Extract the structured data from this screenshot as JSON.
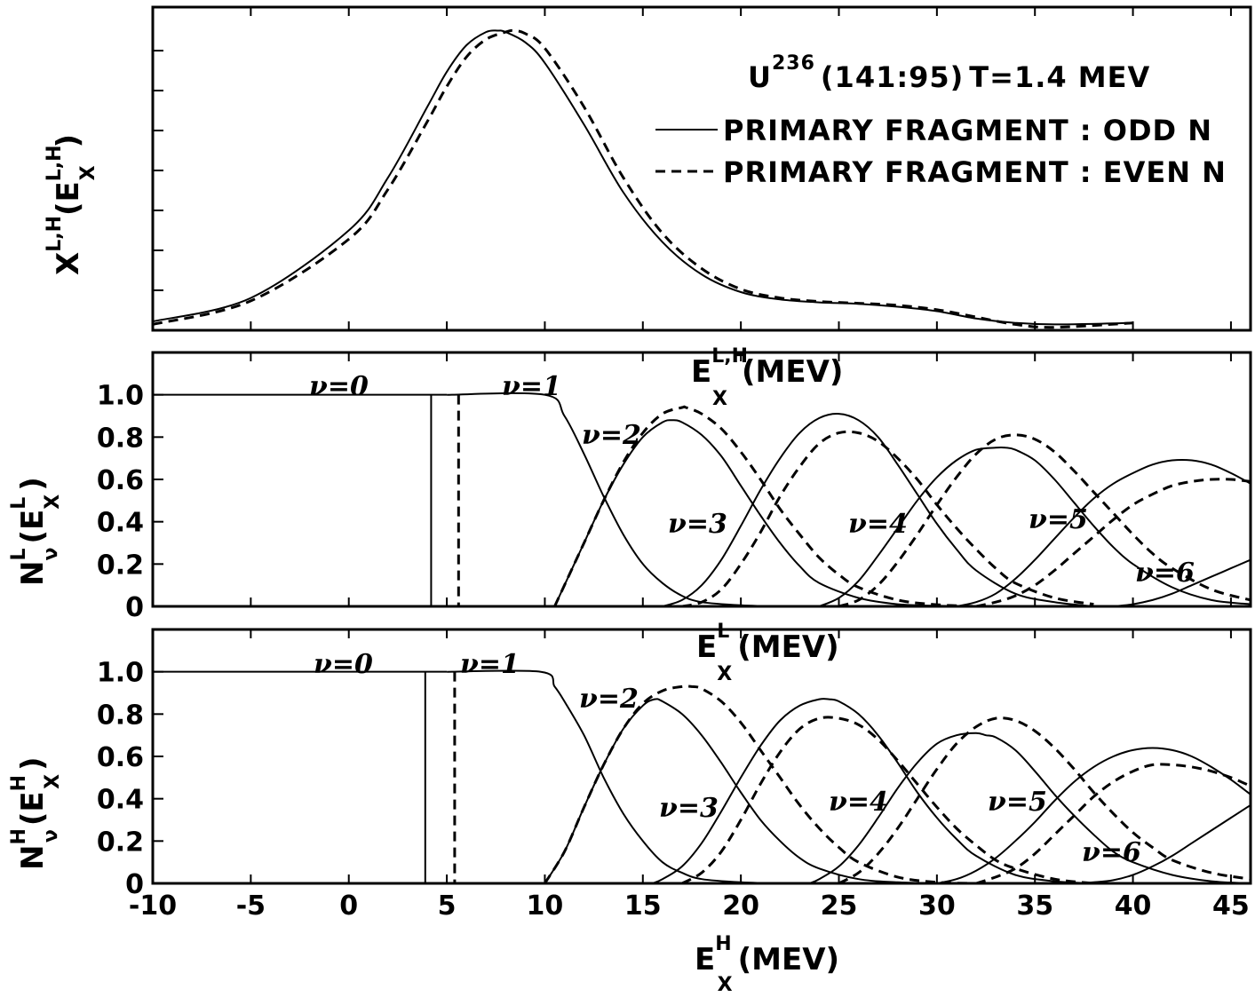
{
  "chart_data": [
    {
      "type": "line",
      "panel": "top",
      "title_parts": {
        "nucleus": "U",
        "mass": "236",
        "ratio": "(141:95)",
        "temperature": "T=1.4 MEV"
      },
      "ylabel": {
        "base": "X",
        "sup": "L,H",
        "arg_open": "(E",
        "arg_sup": "L,H",
        "arg_sub": "X",
        "arg_close": ")"
      },
      "xlabel": {
        "base": "E",
        "sup": "L,H",
        "sub": "X",
        "unit": "(MEV)"
      },
      "xlim": [
        -10,
        46
      ],
      "ylim": [
        0,
        1.0
      ],
      "y_ticks_labeled": false,
      "legend": [
        "PRIMARY FRAGMENT : ODD N",
        "PRIMARY FRAGMENT : EVEN N"
      ],
      "series": [
        {
          "name": "PRIMARY FRAGMENT : ODD N",
          "style": "solid",
          "x": [
            -10,
            -5,
            0,
            2,
            4,
            5,
            6,
            7,
            7.6,
            8,
            9,
            10,
            12,
            14,
            16,
            18,
            20,
            22,
            24,
            26,
            28,
            30,
            32,
            34,
            36,
            40
          ],
          "y": [
            0.01,
            0.09,
            0.32,
            0.5,
            0.74,
            0.86,
            0.95,
            0.995,
            1.0,
            0.995,
            0.96,
            0.89,
            0.68,
            0.45,
            0.28,
            0.17,
            0.11,
            0.085,
            0.075,
            0.07,
            0.06,
            0.045,
            0.02,
            0.005,
            0.0,
            0.005
          ]
        },
        {
          "name": "PRIMARY FRAGMENT : EVEN N",
          "style": "dashed",
          "x": [
            -10,
            -5,
            0,
            2,
            4,
            5,
            6,
            7,
            8,
            8.4,
            9,
            10,
            12,
            14,
            16,
            18,
            20,
            22,
            24,
            26,
            28,
            30,
            32,
            34,
            36,
            40
          ],
          "y": [
            0.0,
            0.08,
            0.29,
            0.46,
            0.69,
            0.81,
            0.91,
            0.97,
            0.995,
            1.0,
            0.99,
            0.94,
            0.74,
            0.5,
            0.31,
            0.19,
            0.12,
            0.09,
            0.078,
            0.072,
            0.065,
            0.05,
            0.025,
            0.0,
            -0.01,
            0.005
          ]
        }
      ]
    },
    {
      "type": "line",
      "panel": "middle",
      "ylabel": {
        "base": "N",
        "sup": "L",
        "sub": "ν",
        "arg_open": "(E",
        "arg_sup": "L",
        "arg_sub": "X",
        "arg_close": ")"
      },
      "xlabel": {
        "base": "E",
        "sup": "L",
        "sub": "X",
        "unit": "(MEV)"
      },
      "xlim": [
        -10,
        46
      ],
      "ylim": [
        0,
        1.2
      ],
      "y_ticks": [
        "0",
        "0.2",
        "0.4",
        "0.6",
        "0.8",
        "1.0"
      ],
      "curve_labels": [
        "ν=0",
        "ν=1",
        "ν=2",
        "ν=3",
        "ν=4",
        "ν=5",
        "ν=6"
      ],
      "thresholds": {
        "odd_N": 4.2,
        "even_N": 5.6
      },
      "series": [
        {
          "name": "ν=1",
          "style": "both",
          "x": [
            5,
            10,
            11,
            12,
            13,
            14,
            15,
            16,
            17,
            18,
            20,
            22,
            24
          ],
          "y": [
            1.0,
            1.0,
            0.9,
            0.72,
            0.52,
            0.34,
            0.2,
            0.11,
            0.05,
            0.02,
            0.005,
            0.0,
            0.0
          ]
        },
        {
          "name": "ν=2",
          "style": "solid",
          "x": [
            10.5,
            11,
            12,
            13,
            14,
            15,
            16,
            16.5,
            17,
            18,
            19,
            20,
            21,
            22,
            23,
            24,
            26,
            28,
            30,
            32
          ],
          "y": [
            0.0,
            0.1,
            0.3,
            0.5,
            0.67,
            0.8,
            0.87,
            0.88,
            0.87,
            0.81,
            0.71,
            0.57,
            0.43,
            0.3,
            0.19,
            0.11,
            0.04,
            0.01,
            0.003,
            0.0
          ]
        },
        {
          "name": "ν=2",
          "style": "dashed",
          "x": [
            10.5,
            11,
            12,
            13,
            14,
            15,
            16,
            17,
            17.2,
            18,
            19,
            20,
            21,
            22,
            23,
            24,
            25,
            26,
            28,
            30,
            32
          ],
          "y": [
            0.0,
            0.1,
            0.3,
            0.5,
            0.68,
            0.82,
            0.91,
            0.94,
            0.94,
            0.91,
            0.84,
            0.73,
            0.6,
            0.46,
            0.34,
            0.23,
            0.15,
            0.09,
            0.03,
            0.008,
            0.0
          ]
        },
        {
          "name": "ν=3",
          "style": "solid",
          "x": [
            16,
            17,
            18,
            19,
            20,
            21,
            22,
            23,
            24,
            25,
            26,
            27,
            28,
            29,
            30,
            31,
            32,
            34,
            36,
            38
          ],
          "y": [
            0.0,
            0.03,
            0.1,
            0.22,
            0.38,
            0.55,
            0.7,
            0.82,
            0.89,
            0.91,
            0.88,
            0.8,
            0.67,
            0.53,
            0.39,
            0.27,
            0.17,
            0.06,
            0.02,
            0.0
          ]
        },
        {
          "name": "ν=3",
          "style": "dashed",
          "x": [
            17,
            18,
            19,
            20,
            21,
            22,
            23,
            24,
            25,
            26,
            27,
            28,
            29,
            30,
            31,
            32,
            33,
            34,
            36,
            38
          ],
          "y": [
            0.0,
            0.02,
            0.08,
            0.2,
            0.35,
            0.52,
            0.66,
            0.77,
            0.82,
            0.82,
            0.78,
            0.7,
            0.6,
            0.48,
            0.37,
            0.27,
            0.18,
            0.11,
            0.04,
            0.01
          ]
        },
        {
          "name": "ν=4",
          "style": "solid",
          "x": [
            24,
            25,
            26,
            27,
            28,
            29,
            30,
            31,
            32,
            33,
            33.5,
            34,
            35,
            36,
            37,
            38,
            39,
            40,
            42,
            44,
            46
          ],
          "y": [
            0.0,
            0.04,
            0.12,
            0.24,
            0.37,
            0.5,
            0.61,
            0.69,
            0.74,
            0.75,
            0.75,
            0.74,
            0.69,
            0.6,
            0.49,
            0.38,
            0.28,
            0.2,
            0.09,
            0.03,
            0.01
          ]
        },
        {
          "name": "ν=4",
          "style": "dashed",
          "x": [
            25,
            26,
            27,
            28,
            29,
            30,
            31,
            32,
            33,
            34,
            35,
            36,
            37,
            38,
            39,
            40,
            41,
            42,
            44,
            46
          ],
          "y": [
            0.0,
            0.03,
            0.1,
            0.21,
            0.34,
            0.48,
            0.61,
            0.72,
            0.79,
            0.81,
            0.79,
            0.73,
            0.64,
            0.54,
            0.44,
            0.34,
            0.25,
            0.18,
            0.08,
            0.03
          ]
        },
        {
          "name": "ν=5",
          "style": "solid",
          "x": [
            31,
            32,
            33,
            34,
            35,
            36,
            37,
            38,
            39,
            40,
            41,
            42,
            43,
            44,
            45,
            46
          ],
          "y": [
            0.0,
            0.02,
            0.06,
            0.13,
            0.22,
            0.32,
            0.42,
            0.51,
            0.58,
            0.63,
            0.67,
            0.69,
            0.69,
            0.67,
            0.63,
            0.58
          ]
        },
        {
          "name": "ν=5",
          "style": "dashed",
          "x": [
            32,
            33,
            34,
            35,
            36,
            37,
            38,
            39,
            40,
            41,
            42,
            43,
            44,
            45,
            46
          ],
          "y": [
            0.0,
            0.02,
            0.05,
            0.1,
            0.17,
            0.25,
            0.33,
            0.41,
            0.48,
            0.53,
            0.57,
            0.59,
            0.6,
            0.6,
            0.59
          ]
        },
        {
          "name": "ν=6",
          "style": "both",
          "x": [
            39,
            40,
            41,
            42,
            43,
            44,
            45,
            46
          ],
          "y": [
            0.0,
            0.01,
            0.03,
            0.06,
            0.1,
            0.14,
            0.18,
            0.22
          ]
        }
      ]
    },
    {
      "type": "line",
      "panel": "bottom",
      "ylabel": {
        "base": "N",
        "sup": "H",
        "sub": "ν",
        "arg_open": "(E",
        "arg_sup": "H",
        "arg_sub": "X",
        "arg_close": ")"
      },
      "xlabel": {
        "base": "E",
        "sup": "H",
        "sub": "X",
        "unit": "(MEV)"
      },
      "xlim": [
        -10,
        46
      ],
      "ylim": [
        0,
        1.2
      ],
      "x_ticks": [
        "-10",
        "-5",
        "0",
        "5",
        "10",
        "15",
        "20",
        "25",
        "30",
        "35",
        "40",
        "45"
      ],
      "y_ticks": [
        "0",
        "0.2",
        "0.4",
        "0.6",
        "0.8",
        "1.0"
      ],
      "curve_labels": [
        "ν=0",
        "ν=1",
        "ν=2",
        "ν=3",
        "ν=4",
        "ν=5",
        "ν=6"
      ],
      "thresholds": {
        "odd_N": 3.9,
        "even_N": 5.4
      },
      "series": [
        {
          "name": "ν=1",
          "style": "both",
          "x": [
            5,
            9.8,
            10.5,
            11,
            12,
            13,
            14,
            15,
            16,
            17,
            18,
            20,
            22,
            24
          ],
          "y": [
            1.0,
            1.0,
            0.93,
            0.86,
            0.7,
            0.5,
            0.33,
            0.2,
            0.1,
            0.05,
            0.02,
            0.005,
            0.0,
            0.0
          ]
        },
        {
          "name": "ν=2",
          "style": "solid",
          "x": [
            10,
            11,
            12,
            13,
            14,
            15,
            15.6,
            16,
            17,
            18,
            19,
            20,
            21,
            22,
            23,
            24,
            26,
            28,
            30,
            32
          ],
          "y": [
            0.0,
            0.15,
            0.36,
            0.56,
            0.73,
            0.84,
            0.87,
            0.86,
            0.8,
            0.7,
            0.57,
            0.43,
            0.3,
            0.2,
            0.12,
            0.07,
            0.02,
            0.005,
            0.0,
            0.0
          ]
        },
        {
          "name": "ν=2",
          "style": "dashed",
          "x": [
            10,
            11,
            12,
            13,
            14,
            15,
            16,
            17,
            17.5,
            18,
            19,
            20,
            21,
            22,
            23,
            24,
            25,
            26,
            28,
            30,
            32
          ],
          "y": [
            0.0,
            0.15,
            0.36,
            0.56,
            0.73,
            0.85,
            0.91,
            0.93,
            0.93,
            0.92,
            0.86,
            0.76,
            0.63,
            0.5,
            0.37,
            0.26,
            0.17,
            0.1,
            0.03,
            0.005,
            0.0
          ]
        },
        {
          "name": "ν=3",
          "style": "solid",
          "x": [
            15.5,
            16,
            17,
            18,
            19,
            20,
            21,
            22,
            23,
            24,
            24.5,
            25,
            26,
            27,
            28,
            29,
            30,
            31,
            32,
            34,
            36,
            38
          ],
          "y": [
            0.0,
            0.02,
            0.08,
            0.19,
            0.34,
            0.5,
            0.65,
            0.77,
            0.84,
            0.87,
            0.87,
            0.86,
            0.8,
            0.7,
            0.57,
            0.43,
            0.31,
            0.21,
            0.13,
            0.04,
            0.01,
            0.0
          ]
        },
        {
          "name": "ν=3",
          "style": "dashed",
          "x": [
            17,
            18,
            19,
            20,
            21,
            22,
            23,
            24,
            25,
            26,
            27,
            28,
            29,
            30,
            31,
            32,
            33,
            34,
            36,
            38
          ],
          "y": [
            0.0,
            0.05,
            0.15,
            0.3,
            0.47,
            0.62,
            0.73,
            0.78,
            0.78,
            0.75,
            0.68,
            0.58,
            0.47,
            0.36,
            0.26,
            0.18,
            0.11,
            0.07,
            0.02,
            0.0
          ]
        },
        {
          "name": "ν=4",
          "style": "solid",
          "x": [
            23.5,
            24,
            25,
            26,
            27,
            28,
            29,
            30,
            31,
            32,
            32.5,
            33,
            34,
            35,
            36,
            37,
            38,
            39,
            40,
            42,
            44,
            46
          ],
          "y": [
            0.0,
            0.02,
            0.08,
            0.18,
            0.31,
            0.45,
            0.57,
            0.66,
            0.7,
            0.71,
            0.7,
            0.69,
            0.63,
            0.53,
            0.42,
            0.32,
            0.23,
            0.15,
            0.1,
            0.04,
            0.01,
            0.0
          ]
        },
        {
          "name": "ν=4",
          "style": "dashed",
          "x": [
            25,
            26,
            27,
            28,
            29,
            30,
            31,
            32,
            33,
            34,
            35,
            36,
            37,
            38,
            39,
            40,
            41,
            42,
            44,
            46
          ],
          "y": [
            0.0,
            0.05,
            0.14,
            0.26,
            0.4,
            0.54,
            0.66,
            0.74,
            0.78,
            0.77,
            0.72,
            0.64,
            0.54,
            0.43,
            0.33,
            0.24,
            0.17,
            0.11,
            0.05,
            0.02
          ]
        },
        {
          "name": "ν=5",
          "style": "solid",
          "x": [
            30,
            31,
            32,
            33,
            34,
            35,
            36,
            37,
            38,
            39,
            40,
            41,
            42,
            43,
            44,
            45,
            46
          ],
          "y": [
            0.0,
            0.02,
            0.06,
            0.12,
            0.2,
            0.29,
            0.39,
            0.48,
            0.55,
            0.6,
            0.63,
            0.64,
            0.63,
            0.6,
            0.55,
            0.49,
            0.42
          ]
        },
        {
          "name": "ν=5",
          "style": "dashed",
          "x": [
            32,
            33,
            34,
            35,
            36,
            37,
            38,
            39,
            40,
            41,
            42,
            43,
            44,
            45,
            46
          ],
          "y": [
            0.0,
            0.03,
            0.07,
            0.14,
            0.23,
            0.32,
            0.41,
            0.48,
            0.53,
            0.56,
            0.56,
            0.55,
            0.53,
            0.5,
            0.46
          ]
        },
        {
          "name": "ν=6",
          "style": "both",
          "x": [
            37,
            38,
            39,
            40,
            41,
            42,
            43,
            44,
            45,
            46
          ],
          "y": [
            0.0,
            0.005,
            0.015,
            0.04,
            0.08,
            0.13,
            0.19,
            0.25,
            0.31,
            0.37
          ]
        }
      ]
    }
  ]
}
